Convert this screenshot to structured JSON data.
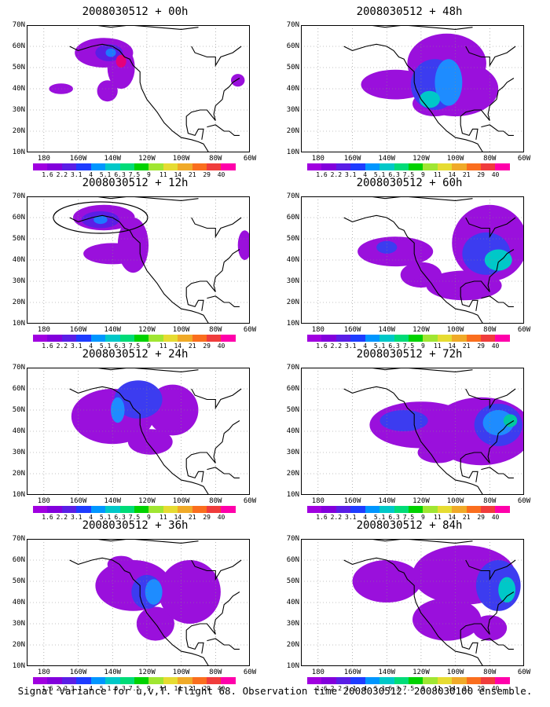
{
  "caption": "Signal Variance for u,v,T. Flight 68. Observation time 2008030512. 2008030100 ensemble.",
  "lat_labels": [
    "70N",
    "60N",
    "50N",
    "40N",
    "30N",
    "20N",
    "10N"
  ],
  "lon_labels": [
    "180",
    "160W",
    "140W",
    "120W",
    "100W",
    "80W",
    "60W"
  ],
  "colorbar": {
    "labels": [
      "1.6",
      "2.2",
      "3.1",
      "4",
      "5.1",
      "6.3",
      "7.5",
      "9",
      "11",
      "14",
      "21",
      "29",
      "40"
    ],
    "colors": [
      "#a000e0",
      "#8200dc",
      "#5a1ee6",
      "#1e3cff",
      "#0096ff",
      "#00c8c8",
      "#00dc78",
      "#00d200",
      "#a0e632",
      "#e6dc32",
      "#f0aa28",
      "#fa6e1e",
      "#f03c3c",
      "#ff00aa"
    ]
  },
  "panels": [
    {
      "title": "2008030512 + 00h"
    },
    {
      "title": "2008030512 + 48h"
    },
    {
      "title": "2008030512 + 12h"
    },
    {
      "title": "2008030512 + 60h"
    },
    {
      "title": "2008030512 + 24h"
    },
    {
      "title": "2008030512 + 72h"
    },
    {
      "title": "2008030512 + 36h"
    },
    {
      "title": "2008030512 + 84h"
    }
  ],
  "fields": [
    [
      {
        "lon": -145,
        "lat": 57,
        "rx": 17,
        "ry": 7,
        "c": "#9a10dc"
      },
      {
        "lon": -135,
        "lat": 50,
        "rx": 8,
        "ry": 10,
        "c": "#9a10dc"
      },
      {
        "lon": -143,
        "lat": 39,
        "rx": 6,
        "ry": 5,
        "c": "#9a10dc"
      },
      {
        "lon": -170,
        "lat": 40,
        "rx": 7,
        "ry": 2.5,
        "c": "#9a10dc"
      },
      {
        "lon": -67,
        "lat": 44,
        "rx": 4,
        "ry": 3,
        "c": "#9a10dc"
      },
      {
        "lon": -142,
        "lat": 57,
        "rx": 8,
        "ry": 4,
        "c": "#5a1ee6"
      },
      {
        "lon": -141,
        "lat": 57,
        "rx": 3,
        "ry": 2,
        "c": "#1e78ff"
      },
      {
        "lon": -135,
        "lat": 53,
        "rx": 3,
        "ry": 3,
        "c": "#e6007a"
      }
    ],
    [
      {
        "lon": -105,
        "lat": 52,
        "rx": 23,
        "ry": 14,
        "c": "#9a10dc"
      },
      {
        "lon": -135,
        "lat": 42,
        "rx": 20,
        "ry": 7,
        "c": "#9a10dc"
      },
      {
        "lon": -100,
        "lat": 40,
        "rx": 25,
        "ry": 13,
        "c": "#9a10dc"
      },
      {
        "lon": -112,
        "lat": 33,
        "rx": 13,
        "ry": 6,
        "c": "#9a10dc"
      },
      {
        "lon": -112,
        "lat": 42,
        "rx": 14,
        "ry": 12,
        "c": "#3c3cf0"
      },
      {
        "lon": -104,
        "lat": 43,
        "rx": 8,
        "ry": 11,
        "c": "#1e8cff"
      },
      {
        "lon": -115,
        "lat": 35,
        "rx": 6,
        "ry": 4,
        "c": "#00c8c8"
      }
    ],
    [
      {
        "lon": -145,
        "lat": 60,
        "rx": 18,
        "ry": 6,
        "c": "#9a10dc"
      },
      {
        "lon": -140,
        "lat": 43,
        "rx": 17,
        "ry": 5,
        "c": "#9a10dc"
      },
      {
        "lon": -128,
        "lat": 47,
        "rx": 9,
        "ry": 13,
        "c": "#9a10dc"
      },
      {
        "lon": -63,
        "lat": 47,
        "rx": 4,
        "ry": 7,
        "c": "#9a10dc"
      },
      {
        "lon": -147,
        "lat": 59,
        "rx": 11,
        "ry": 4,
        "c": "#5a1ee6"
      },
      {
        "lon": -147,
        "lat": 59,
        "rx": 4,
        "ry": 2,
        "c": "#1e78ff"
      }
    ],
    [
      {
        "lon": -135,
        "lat": 44,
        "rx": 22,
        "ry": 7,
        "c": "#9a10dc"
      },
      {
        "lon": -80,
        "lat": 48,
        "rx": 22,
        "ry": 18,
        "c": "#9a10dc"
      },
      {
        "lon": -95,
        "lat": 28,
        "rx": 22,
        "ry": 7,
        "c": "#9a10dc"
      },
      {
        "lon": -120,
        "lat": 33,
        "rx": 12,
        "ry": 6,
        "c": "#9a10dc"
      },
      {
        "lon": -82,
        "lat": 43,
        "rx": 14,
        "ry": 10,
        "c": "#3c3cf0"
      },
      {
        "lon": -75,
        "lat": 40,
        "rx": 8,
        "ry": 5,
        "c": "#00c8c8"
      },
      {
        "lon": -140,
        "lat": 46,
        "rx": 6,
        "ry": 3,
        "c": "#3c3cf0"
      }
    ],
    [
      {
        "lon": -140,
        "lat": 47,
        "rx": 24,
        "ry": 13,
        "c": "#9a10dc"
      },
      {
        "lon": -105,
        "lat": 50,
        "rx": 15,
        "ry": 12,
        "c": "#9a10dc"
      },
      {
        "lon": -118,
        "lat": 35,
        "rx": 13,
        "ry": 6,
        "c": "#9a10dc"
      },
      {
        "lon": -125,
        "lat": 55,
        "rx": 14,
        "ry": 9,
        "c": "#3c3cf0"
      },
      {
        "lon": -137,
        "lat": 50,
        "rx": 4,
        "ry": 6,
        "c": "#1e8cff"
      }
    ],
    [
      {
        "lon": -120,
        "lat": 43,
        "rx": 30,
        "ry": 11,
        "c": "#9a10dc"
      },
      {
        "lon": -85,
        "lat": 40,
        "rx": 30,
        "ry": 16,
        "c": "#9a10dc"
      },
      {
        "lon": -110,
        "lat": 30,
        "rx": 12,
        "ry": 5,
        "c": "#9a10dc"
      },
      {
        "lon": -130,
        "lat": 45,
        "rx": 14,
        "ry": 5,
        "c": "#3c3cf0"
      },
      {
        "lon": -75,
        "lat": 43,
        "rx": 14,
        "ry": 10,
        "c": "#3c3cf0"
      },
      {
        "lon": -75,
        "lat": 44,
        "rx": 9,
        "ry": 6,
        "c": "#1e8cff"
      },
      {
        "lon": -68,
        "lat": 45,
        "rx": 4,
        "ry": 3,
        "c": "#00c8a0"
      }
    ],
    [
      {
        "lon": -128,
        "lat": 48,
        "rx": 22,
        "ry": 12,
        "c": "#9a10dc"
      },
      {
        "lon": -115,
        "lat": 30,
        "rx": 11,
        "ry": 8,
        "c": "#9a10dc"
      },
      {
        "lon": -95,
        "lat": 45,
        "rx": 18,
        "ry": 15,
        "c": "#9a10dc"
      },
      {
        "lon": -135,
        "lat": 58,
        "rx": 8,
        "ry": 4,
        "c": "#9a10dc"
      },
      {
        "lon": -120,
        "lat": 45,
        "rx": 9,
        "ry": 8,
        "c": "#3c3cf0"
      },
      {
        "lon": -116,
        "lat": 45,
        "rx": 5,
        "ry": 6,
        "c": "#1e8cff"
      }
    ],
    [
      {
        "lon": -140,
        "lat": 50,
        "rx": 20,
        "ry": 10,
        "c": "#9a10dc"
      },
      {
        "lon": -95,
        "lat": 53,
        "rx": 30,
        "ry": 14,
        "c": "#9a10dc"
      },
      {
        "lon": -105,
        "lat": 32,
        "rx": 20,
        "ry": 10,
        "c": "#9a10dc"
      },
      {
        "lon": -80,
        "lat": 28,
        "rx": 10,
        "ry": 6,
        "c": "#9a10dc"
      },
      {
        "lon": -75,
        "lat": 48,
        "rx": 13,
        "ry": 12,
        "c": "#3c3cf0"
      },
      {
        "lon": -70,
        "lat": 46,
        "rx": 5,
        "ry": 6,
        "c": "#00c8c8"
      }
    ]
  ]
}
